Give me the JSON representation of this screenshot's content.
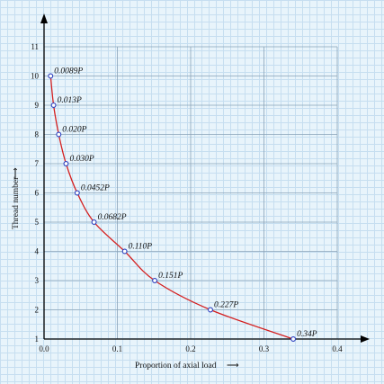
{
  "chart_data": {
    "type": "line",
    "xlabel": "Proportion of axial load",
    "ylabel": "Thread number",
    "xlim": [
      0,
      0.4
    ],
    "ylim": [
      1,
      11
    ],
    "xticks": [
      "0.0",
      "0.1",
      "0.2",
      "0.3",
      "0.4"
    ],
    "yticks": [
      "1",
      "2",
      "3",
      "4",
      "5",
      "6",
      "7",
      "8",
      "9",
      "10",
      "11"
    ],
    "grid": true,
    "series": [
      {
        "x": [
          0.0089,
          0.013,
          0.02,
          0.03,
          0.0452,
          0.0682,
          0.11,
          0.151,
          0.227,
          0.34
        ],
        "y": [
          10,
          9,
          8,
          7,
          6,
          5,
          4,
          3,
          2,
          1
        ],
        "labels": [
          "0.0089P",
          "0.013P",
          "0.020P",
          "0.030P",
          "0.0452P",
          "0.0682P",
          "0.110P",
          "0.151P",
          "0.227P",
          "0.34P"
        ]
      }
    ],
    "colors": {
      "curve": "#d42020",
      "marker": "#2a3fbf",
      "axis": "#000000"
    }
  }
}
